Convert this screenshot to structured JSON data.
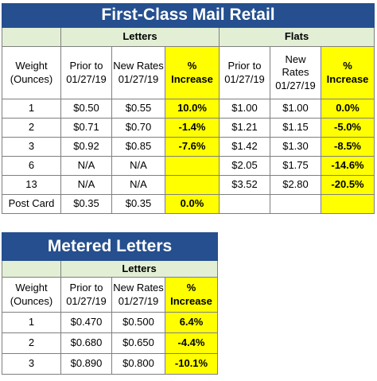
{
  "retail": {
    "title": "First-Class Mail Retail",
    "group_letters": "Letters",
    "group_flats": "Flats",
    "headers": {
      "weight": [
        "Weight",
        "(Ounces)"
      ],
      "prior": [
        "Prior to",
        "01/27/19"
      ],
      "new_letters": [
        "New Rates",
        "01/27/19"
      ],
      "pct": [
        "%",
        "Increase"
      ],
      "new_flats": [
        "New",
        "Rates",
        "01/27/19"
      ]
    },
    "rows": [
      {
        "weight": "1",
        "l_prior": "$0.50",
        "l_new": "$0.55",
        "l_pct": "10.0%",
        "f_prior": "$1.00",
        "f_new": "$1.00",
        "f_pct": "0.0%"
      },
      {
        "weight": "2",
        "l_prior": "$0.71",
        "l_new": "$0.70",
        "l_pct": "-1.4%",
        "f_prior": "$1.21",
        "f_new": "$1.15",
        "f_pct": "-5.0%"
      },
      {
        "weight": "3",
        "l_prior": "$0.92",
        "l_new": "$0.85",
        "l_pct": "-7.6%",
        "f_prior": "$1.42",
        "f_new": "$1.30",
        "f_pct": "-8.5%"
      },
      {
        "weight": "6",
        "l_prior": "N/A",
        "l_new": "N/A",
        "l_pct": "",
        "f_prior": "$2.05",
        "f_new": "$1.75",
        "f_pct": "-14.6%"
      },
      {
        "weight": "13",
        "l_prior": "N/A",
        "l_new": "N/A",
        "l_pct": "",
        "f_prior": "$3.52",
        "f_new": "$2.80",
        "f_pct": "-20.5%"
      },
      {
        "weight": "Post Card",
        "l_prior": "$0.35",
        "l_new": "$0.35",
        "l_pct": "0.0%",
        "f_prior": "",
        "f_new": "",
        "f_pct": ""
      }
    ]
  },
  "metered": {
    "title": "Metered Letters",
    "group_letters": "Letters",
    "headers": {
      "weight": [
        "Weight",
        "(Ounces)"
      ],
      "prior": [
        "Prior to",
        "01/27/19"
      ],
      "new": [
        "New Rates",
        "01/27/19"
      ],
      "pct": [
        "%",
        "Increase"
      ]
    },
    "rows": [
      {
        "weight": "1",
        "prior": "$0.470",
        "new": "$0.500",
        "pct": "6.4%"
      },
      {
        "weight": "2",
        "prior": "$0.680",
        "new": "$0.650",
        "pct": "-4.4%"
      },
      {
        "weight": "3",
        "prior": "$0.890",
        "new": "$0.800",
        "pct": "-10.1%"
      }
    ]
  },
  "colors": {
    "title_bg": "#254f8e",
    "group_bg": "#e2efd5",
    "highlight": "#ffff00"
  }
}
